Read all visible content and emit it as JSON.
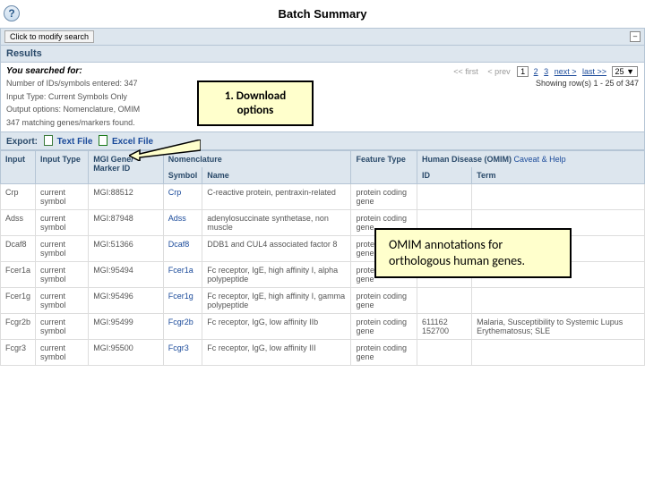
{
  "header": {
    "title": "Batch Summary"
  },
  "modify": {
    "button": "Click to modify search"
  },
  "results": {
    "label": "Results"
  },
  "summary": {
    "searched_for": "You searched for:",
    "line1": "Number of IDs/symbols entered: 347",
    "line2": "Input Type: Current Symbols Only",
    "line3": "Output options: Nomenclature, OMIM",
    "line4": "347 matching genes/markers found."
  },
  "pager": {
    "first": "<< first",
    "prev": "< prev",
    "p1": "1",
    "p2": "2",
    "p3": "3",
    "next": "next >",
    "last": "last >>",
    "size": "25",
    "dd": "▼",
    "showing": "Showing row(s) 1 - 25 of 347"
  },
  "export": {
    "label": "Export:",
    "text": "Text File",
    "excel": "Excel File"
  },
  "columns": {
    "input": "Input",
    "input_type": "Input Type",
    "mgi_id": "MGI Gene/\nMarker ID",
    "nomenclature": "Nomenclature",
    "symbol": "Symbol",
    "name": "Name",
    "feature_type": "Feature Type",
    "omim": "Human Disease (OMIM)",
    "omim_id": "ID",
    "omim_term": "Term",
    "caveat": "Caveat & Help"
  },
  "rows": [
    {
      "input": "Crp",
      "type": "current symbol",
      "mgi": "MGI:88512",
      "sym": "Crp",
      "name": "C-reactive protein, pentraxin-related",
      "ft": "protein coding gene",
      "oid": "",
      "oterm": ""
    },
    {
      "input": "Adss",
      "type": "current symbol",
      "mgi": "MGI:87948",
      "sym": "Adss",
      "name": "adenylosuccinate synthetase, non muscle",
      "ft": "protein coding gene",
      "oid": "",
      "oterm": ""
    },
    {
      "input": "Dcaf8",
      "type": "current symbol",
      "mgi": "MGI:51366",
      "sym": "Dcaf8",
      "name": "DDB1 and CUL4 associated factor 8",
      "ft": "protein coding gene",
      "oid": "",
      "oterm": ""
    },
    {
      "input": "Fcer1a",
      "type": "current symbol",
      "mgi": "MGI:95494",
      "sym": "Fcer1a",
      "name": "Fc receptor, IgE, high affinity I, alpha polypeptide",
      "ft": "protein coding gene",
      "oid": "",
      "oterm": ""
    },
    {
      "input": "Fcer1g",
      "type": "current symbol",
      "mgi": "MGI:95496",
      "sym": "Fcer1g",
      "name": "Fc receptor, IgE, high affinity I, gamma polypeptide",
      "ft": "protein coding gene",
      "oid": "",
      "oterm": ""
    },
    {
      "input": "Fcgr2b",
      "type": "current symbol",
      "mgi": "MGI:95499",
      "sym": "Fcgr2b",
      "name": "Fc receptor, IgG, low affinity IIb",
      "ft": "protein coding gene",
      "oid": "611162 152700",
      "oterm": "Malaria, Susceptibility to Systemic Lupus Erythematosus; SLE"
    },
    {
      "input": "Fcgr3",
      "type": "current symbol",
      "mgi": "MGI:95500",
      "sym": "Fcgr3",
      "name": "Fc receptor, IgG, low affinity III",
      "ft": "protein coding gene",
      "oid": "",
      "oterm": ""
    }
  ],
  "callouts": {
    "c1": "1. Download options",
    "c2": "OMIM annotations for orthologous human genes."
  }
}
